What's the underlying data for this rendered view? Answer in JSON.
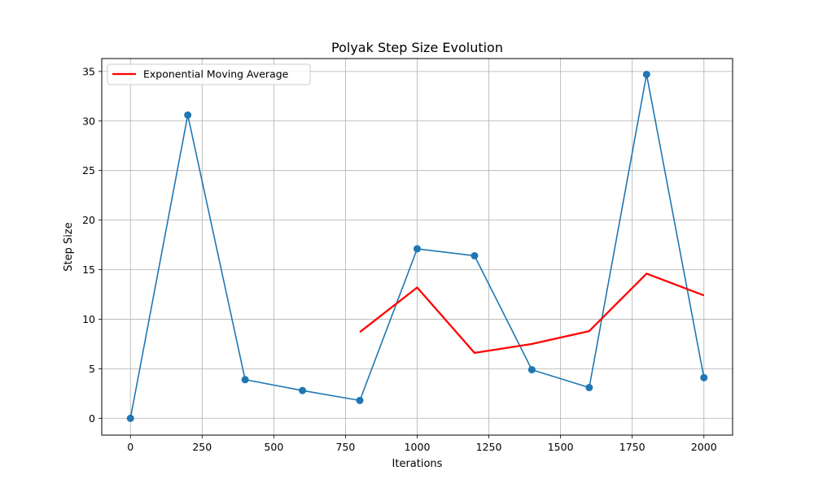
{
  "chart_data": {
    "type": "line",
    "title": "Polyak Step Size Evolution",
    "xlabel": "Iterations",
    "ylabel": "Step Size",
    "xlim": [
      -100,
      2100
    ],
    "ylim": [
      -1.7,
      36.3
    ],
    "x_ticks": [
      0,
      250,
      500,
      750,
      1000,
      1250,
      1500,
      1750,
      2000
    ],
    "y_ticks": [
      0,
      5,
      10,
      15,
      20,
      25,
      30,
      35
    ],
    "grid": true,
    "legend_position": "top-left",
    "series": [
      {
        "key": "step",
        "color": "#1f77b4",
        "markers": true,
        "x": [
          0,
          200,
          400,
          600,
          800,
          1000,
          1200,
          1400,
          1600,
          1800,
          2000
        ],
        "y": [
          0.0,
          30.6,
          3.9,
          2.8,
          1.8,
          17.1,
          16.4,
          4.9,
          3.1,
          34.7,
          4.1
        ]
      },
      {
        "key": "ema",
        "name": "Exponential Moving Average",
        "color": "#ff0000",
        "markers": false,
        "x": [
          800,
          1000,
          1200,
          1400,
          1600,
          1800,
          2000
        ],
        "y": [
          8.7,
          13.2,
          6.6,
          7.5,
          8.8,
          14.6,
          12.4
        ]
      }
    ]
  }
}
